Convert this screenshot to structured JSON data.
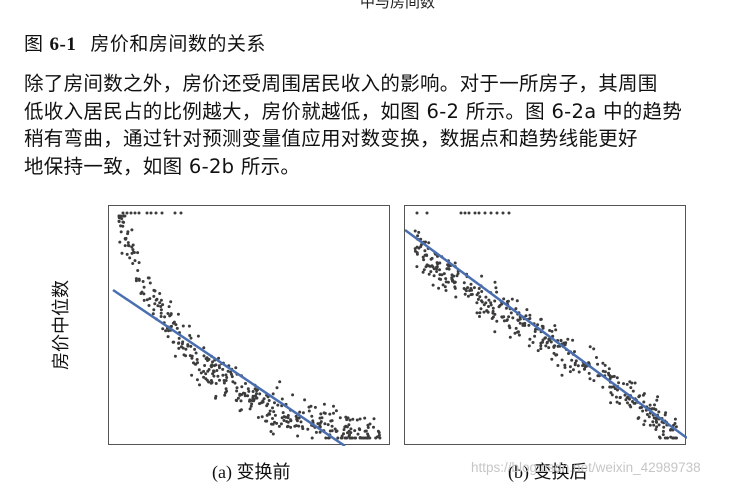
{
  "header": {
    "cut_line": "中与房间数"
  },
  "figure_caption": {
    "label": "图",
    "number": "6-1",
    "title": "房价和房间数的关系"
  },
  "paragraph": {
    "lines": [
      "除了房间数之外，房价还受周围居民收入的影响。对于一所房子，其周围",
      "低收入居民占的比例越大，房价就越低，如图 6-2 所示。图 6-2a 中的趋势",
      "稍有弯曲，通过针对预测变量值应用对数变换，数据点和趋势线能更好",
      "地保持一致，如图 6-2b 所示。"
    ]
  },
  "figure": {
    "ylabel": "房价中位数",
    "panel_a_label": "(a) 变换前",
    "panel_b_label": "(b) 变换后",
    "point_color": "#3c3c3c",
    "line_color": "#4a6fb0"
  },
  "watermark": "https://blog.csdn.net/weixin_42989738"
}
